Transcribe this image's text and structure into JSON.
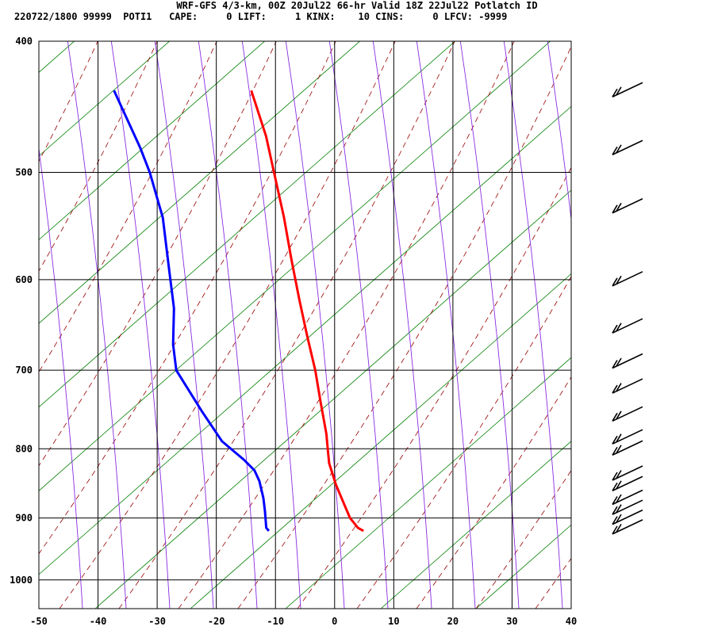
{
  "header": {
    "title": "WRF-GFS 4/3-km, 00Z 20Jul22 66-hr Valid 18Z 22Jul22 Potlatch ID",
    "stats": "220722/1800 99999  POTI1   CAPE:     0 LIFT:     1 KINX:    10 CINS:     0 LFCV: -9999"
  },
  "chart_data": {
    "type": "line",
    "title": "WRF-GFS 4/3-km, 00Z 20Jul22 66-hr Valid 18Z 22Jul22 Potlatch ID",
    "subtitle": "220722/1800 99999  POTI1   CAPE:     0 LIFT:     1 KINX:    10 CINS:     0 LFCV: -9999",
    "chart_kind": "skew-T log-P thermodynamic diagram",
    "xlabel": "",
    "ylabel": "",
    "x_ticks": [
      "-50",
      "-40",
      "-30",
      "-20",
      "-10",
      "0",
      "10",
      "20",
      "30",
      "40"
    ],
    "y_ticks": [
      "400",
      "500",
      "600",
      "700",
      "800",
      "900",
      "1000"
    ],
    "xlim": [
      -50,
      40
    ],
    "ylim": [
      1050,
      400
    ],
    "y_scale": "log",
    "grid": true,
    "series": [
      {
        "color": "#ff0000",
        "role": "temperature",
        "points": [
          [
            -23.3,
            435
          ],
          [
            -20.0,
            470
          ],
          [
            -18.0,
            500
          ],
          [
            -15.5,
            540
          ],
          [
            -13.5,
            580
          ],
          [
            -11.5,
            620
          ],
          [
            -9.5,
            660
          ],
          [
            -7.5,
            700
          ],
          [
            -6.0,
            740
          ],
          [
            -4.5,
            780
          ],
          [
            -4.0,
            800
          ],
          [
            -3.5,
            820
          ],
          [
            -2.0,
            850
          ],
          [
            -0.5,
            875
          ],
          [
            1.0,
            900
          ],
          [
            2.5,
            915
          ],
          [
            3.5,
            920
          ]
        ]
      },
      {
        "color": "#0000ff",
        "role": "dewpoint",
        "points": [
          [
            -46.5,
            435
          ],
          [
            -41.0,
            480
          ],
          [
            -39.0,
            500
          ],
          [
            -36.0,
            540
          ],
          [
            -34.0,
            590
          ],
          [
            -32.5,
            630
          ],
          [
            -32.0,
            670
          ],
          [
            -31.0,
            700
          ],
          [
            -26.0,
            750
          ],
          [
            -22.0,
            790
          ],
          [
            -18.0,
            815
          ],
          [
            -16.0,
            830
          ],
          [
            -15.0,
            845
          ],
          [
            -14.0,
            870
          ],
          [
            -13.5,
            890
          ],
          [
            -13.0,
            915
          ],
          [
            -12.5,
            920
          ]
        ]
      }
    ],
    "background_lines": {
      "dry_adiabats_color": "#008000",
      "moist_adiabats_color": "#990000",
      "mixing_ratio_color": "#8a2be2"
    },
    "wind_barbs": {
      "color": "#000000",
      "pressures": [
        435,
        480,
        530,
        600,
        650,
        690,
        720,
        755,
        785,
        800,
        835,
        850,
        870,
        885,
        900,
        915
      ]
    }
  }
}
